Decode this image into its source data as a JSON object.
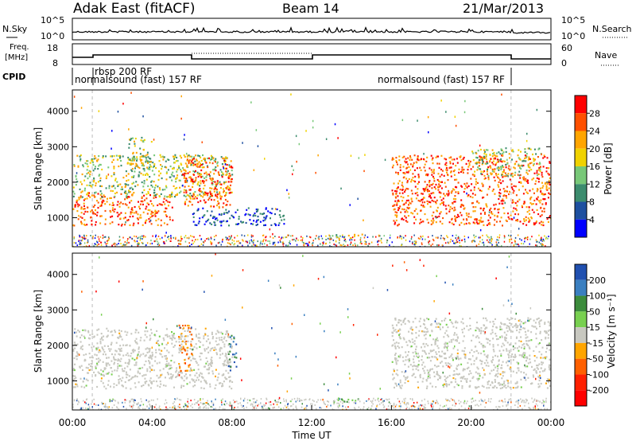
{
  "header": {
    "station": "Adak East (fitACF)",
    "beam": "Beam 14",
    "date": "21/Mar/2013"
  },
  "nsky_panel": {
    "left_label": "N.Sky",
    "left_ticks": [
      "10^5",
      "10^0"
    ],
    "right_ticks": [
      "10^5",
      "10^0"
    ],
    "right_label": "N.Search"
  },
  "freq_panel": {
    "left_label_line1": "Freq.",
    "left_label_line2": "[MHz]",
    "left_ticks": [
      "18",
      "8"
    ],
    "right_ticks": [
      "60",
      "0"
    ],
    "right_label": "Nave"
  },
  "cpid": {
    "label": "CPID",
    "segments": [
      {
        "label": "normalsound (fast) 157 RF",
        "start_h": 0.0,
        "end_h": 1.0
      },
      {
        "label": "rbsp 200 RF",
        "start_h": 1.0,
        "end_h": 22.0
      },
      {
        "label": "normalsound (fast) 157 RF",
        "start_h": 22.0,
        "end_h": 24.0
      }
    ]
  },
  "chart_data": [
    {
      "type": "heatmap",
      "name": "power",
      "ylabel": "Slant Range [km]",
      "ylim": [
        180,
        4600
      ],
      "yticks": [
        "1000",
        "2000",
        "3000",
        "4000"
      ],
      "xlim_hours": [
        0,
        24
      ],
      "colorbar": {
        "label": "Power [dB]",
        "ticks": [
          "4",
          "8",
          "12",
          "16",
          "20",
          "24",
          "28"
        ],
        "colors": [
          "#0000ff",
          "#1e50a0",
          "#3c8c6e",
          "#78c878",
          "#f0d200",
          "#ffa500",
          "#ff5000",
          "#ff0000"
        ]
      },
      "echo_regions": [
        {
          "t0": 0.0,
          "t1": 5.0,
          "r0": 800,
          "r1": 1700,
          "level": "high"
        },
        {
          "t0": 0.0,
          "t1": 8.0,
          "r0": 1600,
          "r1": 2800,
          "level": "medium"
        },
        {
          "t0": 2.8,
          "t1": 4.0,
          "r0": 2400,
          "r1": 3300,
          "level": "medium"
        },
        {
          "t0": 5.5,
          "t1": 8.0,
          "r0": 1300,
          "r1": 2700,
          "level": "high"
        },
        {
          "t0": 6.0,
          "t1": 10.6,
          "r0": 800,
          "r1": 1300,
          "level": "low"
        },
        {
          "t0": 13.0,
          "t1": 14.5,
          "r0": 420,
          "r1": 560,
          "level": "medium"
        },
        {
          "t0": 16.0,
          "t1": 24.0,
          "r0": 800,
          "r1": 2800,
          "level": "high"
        },
        {
          "t0": 20.0,
          "t1": 23.5,
          "r0": 2200,
          "r1": 3000,
          "level": "medium"
        }
      ]
    },
    {
      "type": "heatmap",
      "name": "velocity",
      "ylabel": "Slant Range [km]",
      "ylim": [
        180,
        4600
      ],
      "yticks": [
        "1000",
        "2000",
        "3000",
        "4000"
      ],
      "xlim_hours": [
        0,
        24
      ],
      "xticks": [
        "00:00",
        "04:00",
        "08:00",
        "12:00",
        "16:00",
        "20:00",
        "00:00"
      ],
      "xlabel": "Time UT",
      "colorbar": {
        "label": "Velocity [m s⁻¹]",
        "ticks": [
          "200",
          "100",
          "50",
          "15",
          "-15",
          "-50",
          "-100",
          "-200"
        ],
        "colors": [
          "#2050b0",
          "#3a7fc0",
          "#3c8c3c",
          "#78d050",
          "#c8c8c0",
          "#ffa500",
          "#ff6000",
          "#ff2000",
          "#ff0000"
        ]
      },
      "echo_regions": [
        {
          "t0": 0.0,
          "t1": 8.0,
          "r0": 800,
          "r1": 2500,
          "level": "near-zero"
        },
        {
          "t0": 5.3,
          "t1": 6.0,
          "r0": 1300,
          "r1": 2600,
          "level": "negative"
        },
        {
          "t0": 7.8,
          "t1": 8.2,
          "r0": 1300,
          "r1": 2300,
          "level": "positive"
        },
        {
          "t0": 13.0,
          "t1": 14.5,
          "r0": 400,
          "r1": 560,
          "level": "low-positive"
        },
        {
          "t0": 16.0,
          "t1": 24.0,
          "r0": 800,
          "r1": 2800,
          "level": "near-zero"
        }
      ]
    }
  ]
}
